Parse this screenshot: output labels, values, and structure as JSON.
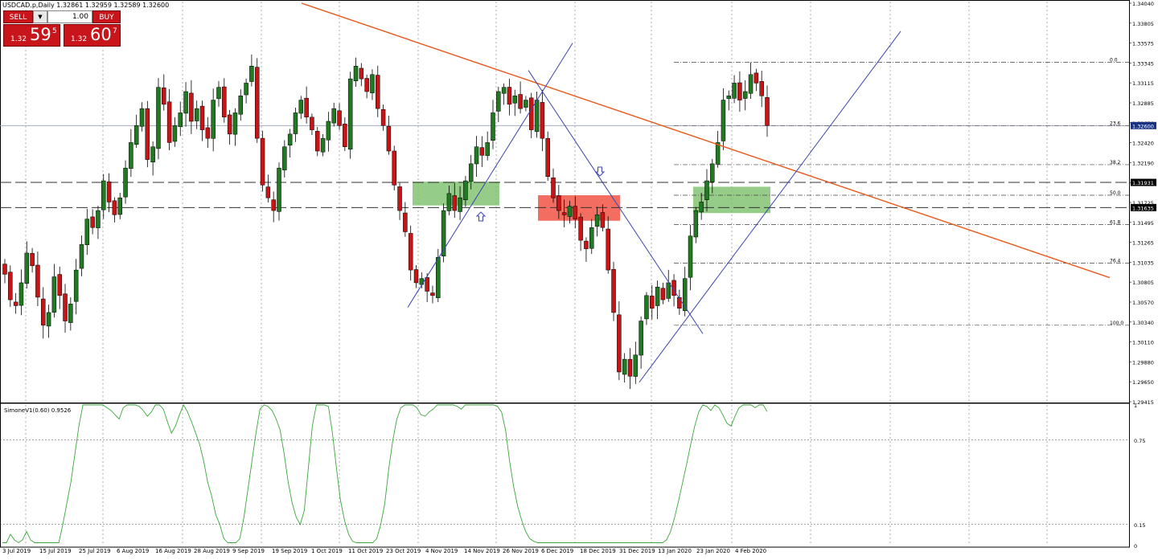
{
  "header": {
    "title": "USDCAD.p,Daily  1.32861 1.32959 1.32589 1.32600"
  },
  "trade_panel": {
    "sell_label": "SELL",
    "buy_label": "BUY",
    "lot": "1.00",
    "sell_small": "1.32",
    "sell_big": "59",
    "sell_sup": "5",
    "buy_small": "1.32",
    "buy_big": "60",
    "buy_sup": "7"
  },
  "colors": {
    "bull": "#217a21",
    "bear": "#c81414",
    "trendline_orange": "#e8591a",
    "channel_blue": "#3a45b0",
    "zone_green": "#7bbf6a",
    "zone_red": "#f04a3a",
    "indicator_line": "#3aa83a",
    "current_price_tag": "#1a3380"
  },
  "chart_data": [
    {
      "type": "candlestick",
      "title": "USDCAD.p,Daily",
      "symbol": "USDCAD.p",
      "timeframe": "Daily",
      "ohlc_last": {
        "open": 1.32861,
        "high": 1.32959,
        "low": 1.32589,
        "close": 1.326
      },
      "ylim": [
        1.2935,
        1.3404
      ],
      "y_tick_labels": [
        "1.34040",
        "1.33805",
        "1.33575",
        "1.33345",
        "1.33115",
        "1.32885",
        "1.32650",
        "1.32420",
        "1.32190",
        "1.31960",
        "1.31725",
        "1.31495",
        "1.31265",
        "1.31035",
        "1.30805",
        "1.30570",
        "1.30340",
        "1.30110",
        "1.29880",
        "1.29650",
        "1.29415"
      ],
      "x_tick_labels": [
        "3 Jul 2019",
        "15 Jul 2019",
        "25 Jul 2019",
        "6 Aug 2019",
        "16 Aug 2019",
        "28 Aug 2019",
        "9 Sep 2019",
        "19 Sep 2019",
        "1 Oct 2019",
        "11 Oct 2019",
        "23 Oct 2019",
        "4 Nov 2019",
        "14 Nov 2019",
        "26 Nov 2019",
        "6 Dec 2019",
        "18 Dec 2019",
        "31 Dec 2019",
        "13 Jan 2020",
        "23 Jan 2020",
        "4 Feb 2020"
      ],
      "price_tags": [
        {
          "label": "1.32600",
          "value": 1.326,
          "style": "current"
        },
        {
          "label": "1.31931",
          "value": 1.31931,
          "style": "level"
        },
        {
          "label": "1.31635",
          "value": 1.31635,
          "style": "level"
        }
      ],
      "horizontal_dashed_levels": [
        1.31931,
        1.31635
      ],
      "fibonacci": {
        "levels": [
          {
            "label": "0.0",
            "value": 1.33345
          },
          {
            "label": "23.6",
            "value": 1.326
          },
          {
            "label": "38.2",
            "value": 1.3214
          },
          {
            "label": "50.0",
            "value": 1.3178
          },
          {
            "label": "61.8",
            "value": 1.31435
          },
          {
            "label": "76.4",
            "value": 1.3098
          },
          {
            "label": "100.0",
            "value": 1.3025
          }
        ]
      },
      "closes": [
        1.3085,
        1.3055,
        1.3048,
        1.3075,
        1.311,
        1.3095,
        1.3058,
        1.3025,
        1.304,
        1.3082,
        1.306,
        1.303,
        1.305,
        1.309,
        1.312,
        1.315,
        1.314,
        1.316,
        1.3195,
        1.317,
        1.3155,
        1.3175,
        1.321,
        1.324,
        1.326,
        1.328,
        1.322,
        1.3235,
        1.3305,
        1.3285,
        1.324,
        1.326,
        1.3275,
        1.33,
        1.3265,
        1.328,
        1.3255,
        1.3245,
        1.329,
        1.3305,
        1.327,
        1.325,
        1.3275,
        1.3295,
        1.331,
        1.333,
        1.3245,
        1.319,
        1.3175,
        1.316,
        1.321,
        1.3235,
        1.325,
        1.3275,
        1.329,
        1.327,
        1.3255,
        1.323,
        1.3245,
        1.3265,
        1.328,
        1.326,
        1.3235,
        1.3315,
        1.333,
        1.3315,
        1.33,
        1.332,
        1.328,
        1.326,
        1.323,
        1.319,
        1.316,
        1.3135,
        1.309,
        1.3075,
        1.308,
        1.3065,
        1.306,
        1.3105,
        1.316,
        1.318,
        1.316,
        1.3175,
        1.3195,
        1.3215,
        1.3235,
        1.3225,
        1.324,
        1.3275,
        1.33,
        1.3305,
        1.3285,
        1.3295,
        1.328,
        1.329,
        1.3255,
        1.329,
        1.3245,
        1.32,
        1.3175,
        1.316,
        1.3155,
        1.3165,
        1.315,
        1.3125,
        1.3115,
        1.314,
        1.3155,
        1.314,
        1.309,
        1.304,
        1.297,
        1.2985,
        1.2965,
        1.299,
        1.303,
        1.306,
        1.3045,
        1.307,
        1.3055,
        1.3075,
        1.306,
        1.3045,
        1.308,
        1.313,
        1.316,
        1.317,
        1.3195,
        1.3215,
        1.324,
        1.329,
        1.3295,
        1.331,
        1.329,
        1.33,
        1.332,
        1.331,
        1.3295,
        1.326
      ],
      "trendlines": [
        {
          "name": "orange-downtrend",
          "color": "orange"
        },
        {
          "name": "blue-channel",
          "color": "blue"
        }
      ],
      "zones": [
        {
          "name": "green-zone-1",
          "color": "green"
        },
        {
          "name": "red-zone",
          "color": "red"
        },
        {
          "name": "green-zone-2",
          "color": "green"
        }
      ]
    },
    {
      "type": "line",
      "title": "SimoneV1(0.60) 0.9526",
      "ylim": [
        0,
        1
      ],
      "y_tick_labels": [
        "1",
        "0.75",
        "0.15",
        "0"
      ],
      "last_value": 0.9526,
      "values": [
        0.02,
        0.02,
        0.08,
        0.04,
        0.02,
        0.04,
        0.1,
        0.04,
        0.02,
        0.02,
        0.02,
        0.02,
        0.02,
        0.02,
        0.02,
        0.15,
        0.3,
        0.45,
        0.65,
        0.85,
        1.0,
        1.0,
        1.0,
        1.0,
        1.0,
        1.0,
        0.98,
        0.96,
        0.93,
        0.9,
        0.98,
        1.0,
        1.0,
        1.0,
        0.99,
        0.96,
        0.92,
        0.95,
        1.0,
        1.0,
        0.97,
        0.88,
        0.8,
        0.85,
        0.93,
        1.0,
        0.95,
        0.88,
        0.8,
        0.72,
        0.6,
        0.45,
        0.35,
        0.22,
        0.15,
        0.05,
        0.02,
        0.02,
        0.02,
        0.05,
        0.2,
        0.4,
        0.6,
        0.8,
        0.97,
        1.0,
        0.99,
        0.96,
        0.9,
        0.82,
        0.65,
        0.45,
        0.3,
        0.2,
        0.15,
        0.25,
        0.55,
        0.85,
        1.0,
        1.0,
        1.0,
        0.99,
        0.8,
        0.55,
        0.32,
        0.18,
        0.08,
        0.03,
        0.02,
        0.02,
        0.02,
        0.02,
        0.02,
        0.05,
        0.15,
        0.3,
        0.55,
        0.75,
        0.9,
        0.98,
        1.0,
        1.0,
        1.0,
        0.98,
        0.93,
        0.92,
        0.95,
        0.97,
        1.0,
        1.0,
        1.0,
        1.0,
        1.0,
        0.99,
        0.97,
        1.0,
        1.0,
        1.0,
        1.0,
        1.0,
        1.0,
        1.0,
        1.0,
        0.99,
        0.95,
        0.82,
        0.6,
        0.42,
        0.28,
        0.18,
        0.1,
        0.05,
        0.03,
        0.02,
        0.02,
        0.02,
        0.02,
        0.02,
        0.02,
        0.02,
        0.02,
        0.02,
        0.02,
        0.02,
        0.02,
        0.02,
        0.02,
        0.02,
        0.02,
        0.02,
        0.02,
        0.02,
        0.02,
        0.02,
        0.02,
        0.02,
        0.02,
        0.02,
        0.02,
        0.02,
        0.02,
        0.02,
        0.02,
        0.02,
        0.02,
        0.04,
        0.1,
        0.2,
        0.32,
        0.45,
        0.58,
        0.72,
        0.85,
        0.95,
        1.0,
        0.99,
        0.96,
        1.0,
        0.98,
        0.93,
        0.87,
        0.85,
        0.92,
        0.98,
        1.0,
        1.0,
        1.0,
        0.98,
        1.0,
        1.0,
        0.9526
      ]
    }
  ]
}
